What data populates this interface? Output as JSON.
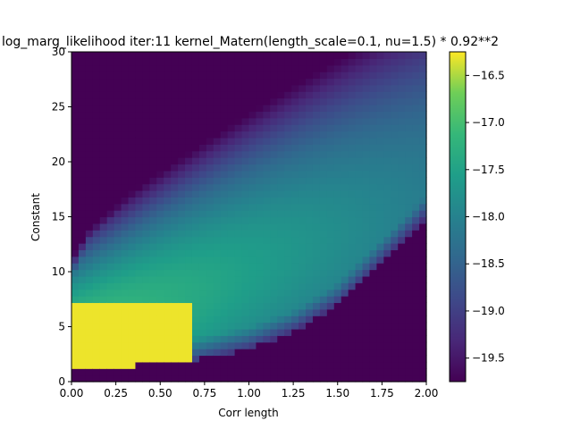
{
  "chart_data": {
    "type": "heatmap",
    "title": "log_marg_likelihood iter:11 kernel_Matern(length_scale=0.1, nu=1.5) * 0.92**2",
    "xlabel": "Corr length",
    "ylabel": "Constant",
    "xlim": [
      0,
      2
    ],
    "ylim": [
      0,
      30
    ],
    "x_ticks": [
      0,
      0.25,
      0.5,
      0.75,
      1.0,
      1.25,
      1.5,
      1.75,
      2.0
    ],
    "x_tick_labels": [
      "0.00",
      "0.25",
      "0.50",
      "0.75",
      "1.00",
      "1.25",
      "1.50",
      "1.75",
      "2.00"
    ],
    "y_ticks": [
      0,
      5,
      10,
      15,
      20,
      25,
      30
    ],
    "y_tick_labels": [
      "0",
      "5",
      "10",
      "15",
      "20",
      "25",
      "30"
    ],
    "colormap": "viridis",
    "colorbar": {
      "vmin": -19.75,
      "vmax": -16.25,
      "ticks": [
        -16.5,
        -17.0,
        -17.5,
        -18.0,
        -18.5,
        -19.0,
        -19.5
      ],
      "tick_labels": [
        "−16.5",
        "−17.0",
        "−17.5",
        "−18.0",
        "−18.5",
        "−19.0",
        "−19.5"
      ]
    },
    "grid": false,
    "resolution": [
      50,
      50
    ],
    "x_centers": [
      0.02,
      0.06,
      0.1,
      0.14,
      0.18,
      0.22,
      0.26,
      0.3,
      0.34,
      0.38,
      0.42,
      0.46,
      0.5,
      0.54,
      0.58,
      0.62,
      0.66,
      0.7,
      0.74,
      0.78,
      0.82,
      0.86,
      0.9,
      0.94,
      0.98,
      1.02,
      1.06,
      1.1,
      1.14,
      1.18,
      1.22,
      1.26,
      1.3,
      1.34,
      1.38,
      1.42,
      1.46,
      1.5,
      1.54,
      1.58,
      1.62,
      1.66,
      1.7,
      1.74,
      1.78,
      1.82,
      1.86,
      1.9,
      1.94,
      1.98
    ],
    "y_centers": [
      0.3,
      0.9,
      1.5,
      2.1,
      2.7,
      3.3,
      3.9,
      4.5,
      5.1,
      5.7,
      6.3,
      6.9,
      7.5,
      8.1,
      8.7,
      9.3,
      9.9,
      10.5,
      11.1,
      11.7,
      12.3,
      12.9,
      13.5,
      14.1,
      14.7,
      15.3,
      15.9,
      16.5,
      17.1,
      17.7,
      18.3,
      18.9,
      19.5,
      20.1,
      20.7,
      21.3,
      21.9,
      22.5,
      23.1,
      23.7,
      24.3,
      24.9,
      25.5,
      26.1,
      26.7,
      27.3,
      27.9,
      28.5,
      29.1,
      29.7
    ],
    "surface_model": {
      "note_floor": "values below colorbar minimum shown as darkest color",
      "bright_region": {
        "x_range": [
          0.0,
          0.68
        ],
        "y_range": [
          1.3,
          7.3
        ],
        "value": -16.3
      },
      "ridge": {
        "peak_value": -17.0,
        "center_slope": 6.5,
        "center_offset": 3.5
      },
      "lower_boundary_samples": [
        [
          0.05,
          1.3
        ],
        [
          0.5,
          1.6
        ],
        [
          0.75,
          2.2
        ],
        [
          1.0,
          3.0
        ],
        [
          1.25,
          4.5
        ],
        [
          1.5,
          7.0
        ],
        [
          1.75,
          11.0
        ],
        [
          2.0,
          15.0
        ]
      ],
      "upper_boundary_samples": [
        [
          0.0,
          12.0
        ],
        [
          0.1,
          16.0
        ],
        [
          0.25,
          18.5
        ],
        [
          0.5,
          23.0
        ],
        [
          0.75,
          27.0
        ],
        [
          1.0,
          30.0
        ]
      ]
    }
  }
}
